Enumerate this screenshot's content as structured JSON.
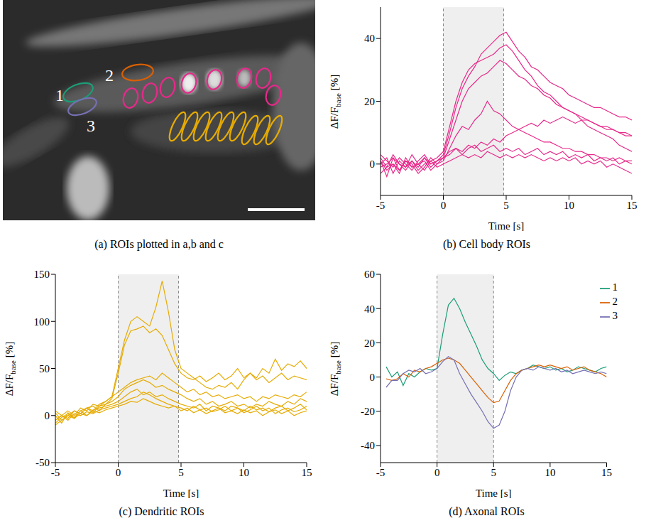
{
  "image_panel": {
    "caption": "(a) ROIs plotted in a,b and c"
  },
  "chart_data": [
    {
      "type": "line",
      "caption": "(b) Cell body ROIs",
      "xlabel": "Time [s]",
      "ylabel": "ΔF/F",
      "ylabel_subscript": "base",
      "ylabel_unit": "[%]",
      "x": [
        -5,
        -4.5,
        -4,
        -3.5,
        -3,
        -2.5,
        -2,
        -1.5,
        -1,
        -0.5,
        0,
        0.5,
        1,
        1.5,
        2,
        2.5,
        3,
        3.5,
        4,
        4.5,
        5,
        5.5,
        6,
        6.5,
        7,
        7.5,
        8,
        8.5,
        9,
        9.5,
        10,
        10.5,
        11,
        11.5,
        12,
        12.5,
        13,
        13.5,
        14,
        14.5,
        15
      ],
      "xlim": [
        -5,
        15
      ],
      "xticks": [
        -5,
        0,
        5,
        10,
        15
      ],
      "ylim": [
        -10,
        50
      ],
      "yticks": [
        0,
        20,
        40
      ],
      "stimulus": [
        0,
        4.8
      ],
      "series": [
        {
          "color": "#e7298a",
          "values": [
            2,
            -1,
            3,
            0,
            -2,
            1,
            -1,
            2,
            0,
            1,
            3,
            10,
            18,
            24,
            28,
            31,
            35,
            37,
            39,
            41,
            42,
            39,
            36,
            34,
            31,
            30,
            28,
            26,
            25,
            24,
            22,
            21,
            20,
            19,
            18,
            18,
            17,
            16,
            15,
            15,
            14
          ]
        },
        {
          "color": "#e7298a",
          "values": [
            0,
            2,
            -3,
            1,
            -1,
            3,
            0,
            -2,
            1,
            2,
            4,
            12,
            20,
            26,
            30,
            32,
            33,
            34,
            35,
            37,
            38,
            36,
            33,
            30,
            28,
            25,
            23,
            22,
            20,
            18,
            17,
            16,
            15,
            14,
            13,
            12,
            12,
            11,
            10,
            10,
            9
          ]
        },
        {
          "color": "#e7298a",
          "values": [
            1,
            -2,
            0,
            -3,
            2,
            -1,
            0,
            1,
            -2,
            0,
            2,
            8,
            14,
            20,
            24,
            26,
            28,
            29,
            31,
            33,
            32,
            30,
            28,
            27,
            25,
            24,
            22,
            21,
            19,
            18,
            17,
            16,
            14,
            14,
            13,
            12,
            11,
            11,
            10,
            9,
            9
          ]
        },
        {
          "color": "#e7298a",
          "values": [
            -1,
            0,
            2,
            -2,
            1,
            0,
            -3,
            -1,
            2,
            0,
            1,
            5,
            9,
            12,
            11,
            14,
            16,
            20,
            17,
            16,
            14,
            12,
            11,
            10,
            9,
            8,
            7,
            7,
            6,
            5,
            5,
            4,
            4,
            3,
            3,
            2,
            2,
            1,
            2,
            1,
            1
          ]
        },
        {
          "color": "#e7298a",
          "values": [
            3,
            1,
            -1,
            2,
            0,
            -2,
            1,
            3,
            0,
            1,
            2,
            3,
            5,
            4,
            6,
            5,
            7,
            6,
            8,
            7,
            9,
            10,
            11,
            12,
            13,
            12,
            14,
            13,
            14,
            15,
            14,
            13,
            14,
            12,
            11,
            10,
            9,
            8,
            6,
            5,
            4
          ]
        },
        {
          "color": "#e7298a",
          "values": [
            -3,
            -1,
            0,
            -2,
            1,
            -1,
            0,
            2,
            -1,
            1,
            2,
            4,
            5,
            3,
            5,
            6,
            4,
            5,
            6,
            4,
            5,
            4,
            5,
            3,
            4,
            5,
            3,
            4,
            3,
            4,
            2,
            3,
            2,
            3,
            1,
            2,
            1,
            2,
            0,
            1,
            0
          ]
        },
        {
          "color": "#e7298a",
          "values": [
            1,
            -4,
            2,
            0,
            -1,
            1,
            -2,
            0,
            1,
            -1,
            0,
            1,
            2,
            3,
            2,
            3,
            2,
            4,
            3,
            2,
            3,
            2,
            3,
            2,
            3,
            2,
            1,
            2,
            1,
            2,
            1,
            2,
            0,
            1,
            0,
            1,
            -1,
            0,
            -1,
            -2,
            -3
          ]
        }
      ]
    },
    {
      "type": "line",
      "caption": "(c) Dendritic ROIs",
      "xlabel": "Time [s]",
      "ylabel": "ΔF/F",
      "ylabel_subscript": "base",
      "ylabel_unit": "[%]",
      "x": [
        -5,
        -4.5,
        -4,
        -3.5,
        -3,
        -2.5,
        -2,
        -1.5,
        -1,
        -0.5,
        0,
        0.5,
        1,
        1.5,
        2,
        2.5,
        3,
        3.5,
        4,
        4.5,
        5,
        5.5,
        6,
        6.5,
        7,
        7.5,
        8,
        8.5,
        9,
        9.5,
        10,
        10.5,
        11,
        11.5,
        12,
        12.5,
        13,
        13.5,
        14,
        14.5,
        15
      ],
      "xlim": [
        -5,
        15
      ],
      "xticks": [
        -5,
        0,
        5,
        10,
        15
      ],
      "ylim": [
        -50,
        150
      ],
      "yticks": [
        -50,
        0,
        50,
        100,
        150
      ],
      "stimulus": [
        0,
        4.8
      ],
      "series": [
        {
          "color": "#e6ab02",
          "values": [
            -5,
            0,
            -3,
            5,
            2,
            8,
            5,
            12,
            15,
            20,
            50,
            80,
            100,
            105,
            100,
            95,
            115,
            143,
            110,
            70,
            50,
            45,
            40,
            35,
            30,
            28,
            32,
            30,
            35,
            28,
            38,
            45,
            40,
            50,
            45,
            60,
            48,
            55,
            52,
            58,
            50
          ]
        },
        {
          "color": "#e6ab02",
          "values": [
            0,
            -8,
            3,
            -2,
            5,
            8,
            3,
            10,
            12,
            18,
            45,
            75,
            90,
            92,
            95,
            88,
            92,
            85,
            70,
            55,
            45,
            40,
            38,
            42,
            36,
            40,
            45,
            38,
            42,
            50,
            40,
            45,
            38,
            42,
            35,
            40,
            45,
            38,
            42,
            40,
            38
          ]
        },
        {
          "color": "#e6ab02",
          "values": [
            -5,
            0,
            5,
            0,
            8,
            5,
            12,
            10,
            15,
            20,
            25,
            30,
            35,
            38,
            40,
            42,
            38,
            45,
            40,
            35,
            30,
            25,
            28,
            22,
            25,
            20,
            22,
            18,
            20,
            22,
            18,
            20,
            15,
            20,
            18,
            22,
            20,
            18,
            22,
            20,
            25
          ]
        },
        {
          "color": "#e6ab02",
          "values": [
            3,
            -5,
            0,
            5,
            2,
            8,
            10,
            5,
            12,
            15,
            20,
            28,
            32,
            35,
            38,
            35,
            30,
            32,
            28,
            25,
            22,
            18,
            15,
            18,
            12,
            15,
            10,
            12,
            15,
            10,
            12,
            8,
            12,
            10,
            15,
            12,
            10,
            15,
            12,
            18,
            15
          ]
        },
        {
          "color": "#e6ab02",
          "values": [
            -8,
            -2,
            2,
            -3,
            5,
            0,
            6,
            8,
            10,
            12,
            15,
            20,
            25,
            28,
            22,
            25,
            20,
            22,
            18,
            15,
            12,
            10,
            8,
            12,
            5,
            10,
            8,
            5,
            10,
            8,
            5,
            10,
            6,
            8,
            4,
            8,
            10,
            5,
            8,
            12,
            6
          ]
        },
        {
          "color": "#e6ab02",
          "values": [
            5,
            0,
            -5,
            2,
            0,
            4,
            2,
            6,
            8,
            10,
            12,
            15,
            18,
            20,
            25,
            22,
            18,
            15,
            12,
            10,
            8,
            5,
            10,
            6,
            8,
            4,
            6,
            10,
            5,
            8,
            3,
            6,
            10,
            5,
            8,
            2,
            6,
            8,
            4,
            6,
            10
          ]
        },
        {
          "color": "#e6ab02",
          "values": [
            -10,
            -5,
            0,
            -3,
            2,
            0,
            5,
            3,
            6,
            8,
            10,
            12,
            15,
            14,
            18,
            15,
            12,
            10,
            8,
            10,
            5,
            8,
            3,
            6,
            2,
            5,
            8,
            3,
            5,
            2,
            6,
            3,
            5,
            0,
            4,
            6,
            2,
            5,
            0,
            3,
            5
          ]
        }
      ]
    },
    {
      "type": "line",
      "caption": "(d) Axonal ROIs",
      "xlabel": "Time [s]",
      "ylabel": "ΔF/F",
      "ylabel_subscript": "base",
      "ylabel_unit": "[%]",
      "x": [
        -5,
        -4.5,
        -4,
        -3.5,
        -3,
        -2.5,
        -2,
        -1.5,
        -1,
        -0.5,
        0,
        0.5,
        1,
        1.5,
        2,
        2.5,
        3,
        3.5,
        4,
        4.5,
        5,
        5.5,
        6,
        6.5,
        7,
        7.5,
        8,
        8.5,
        9,
        9.5,
        10,
        10.5,
        11,
        11.5,
        12,
        12.5,
        13,
        13.5,
        14,
        14.5,
        15
      ],
      "xlim": [
        -5,
        15
      ],
      "xticks": [
        -5,
        0,
        5,
        10,
        15
      ],
      "ylim": [
        -50,
        60
      ],
      "yticks": [
        -40,
        -20,
        0,
        20,
        40,
        60
      ],
      "stimulus": [
        0,
        5
      ],
      "legend": "upper right",
      "series": [
        {
          "name": "1",
          "color": "#1b9e77",
          "values": [
            null,
            6,
            0,
            3,
            -5,
            2,
            0,
            3,
            5,
            4,
            5,
            25,
            42,
            46,
            40,
            32,
            25,
            18,
            10,
            5,
            2,
            -2,
            1,
            3,
            2,
            4,
            5,
            7,
            6,
            5,
            6,
            4,
            5,
            3,
            4,
            6,
            5,
            4,
            3,
            5,
            6
          ]
        },
        {
          "name": "2",
          "color": "#d95f02",
          "values": [
            null,
            -1,
            -2,
            -1,
            2,
            0,
            4,
            3,
            5,
            6,
            8,
            10,
            11,
            10,
            8,
            4,
            0,
            -4,
            -8,
            -12,
            -15,
            -14,
            -8,
            -2,
            2,
            4,
            5,
            6,
            7,
            6,
            7,
            6,
            5,
            6,
            4,
            5,
            6,
            4,
            3,
            2,
            0
          ]
        },
        {
          "name": "3",
          "color": "#7570b3",
          "values": [
            null,
            -6,
            -2,
            -2,
            2,
            4,
            3,
            5,
            2,
            3,
            5,
            9,
            12,
            10,
            2,
            -4,
            -10,
            -15,
            -20,
            -26,
            -30,
            -28,
            -20,
            -8,
            0,
            4,
            5,
            4,
            6,
            5,
            4,
            5,
            3,
            4,
            2,
            3,
            4,
            3,
            2,
            3,
            2
          ]
        }
      ]
    }
  ]
}
